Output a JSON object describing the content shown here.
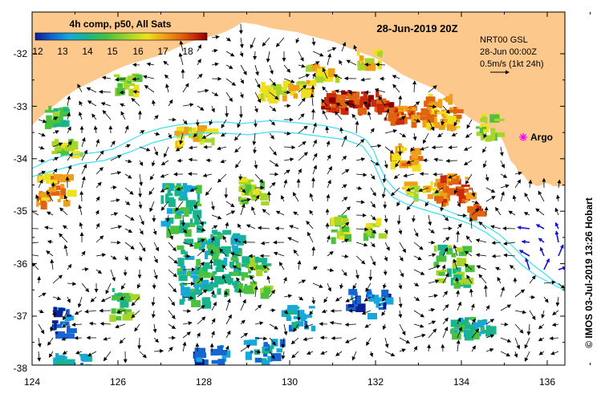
{
  "map": {
    "title": "28-Jun-2019 20Z",
    "colorbar": {
      "label": "4h comp, p50, All Sats",
      "ticks": [
        "12",
        "13",
        "14",
        "15",
        "16",
        "17",
        "18"
      ],
      "colors": [
        "#0a1e96",
        "#1466d2",
        "#16a8d8",
        "#18b48c",
        "#4cc23c",
        "#a8d52a",
        "#eee01e",
        "#f0a018",
        "#e06410",
        "#c82a0a",
        "#8a0000"
      ]
    },
    "info_box": {
      "line1": "NRT00 GSL",
      "line2": "28-Jun 00:00Z",
      "line3": "0.5m/s (1kt 24h)"
    },
    "argo_label": "Argo",
    "credit": "© IMOS 03-Jul-2019 13:26 Hobart",
    "lat_labels": [
      "-32",
      "-33",
      "-34",
      "-35",
      "-36",
      "-37",
      "-38"
    ],
    "lon_labels": [
      "124",
      "126",
      "128",
      "130",
      "132",
      "134",
      "136"
    ],
    "land_color": "#fcc88c",
    "contour_color": "#3ee0f0",
    "sea_color": "#ffffff"
  }
}
